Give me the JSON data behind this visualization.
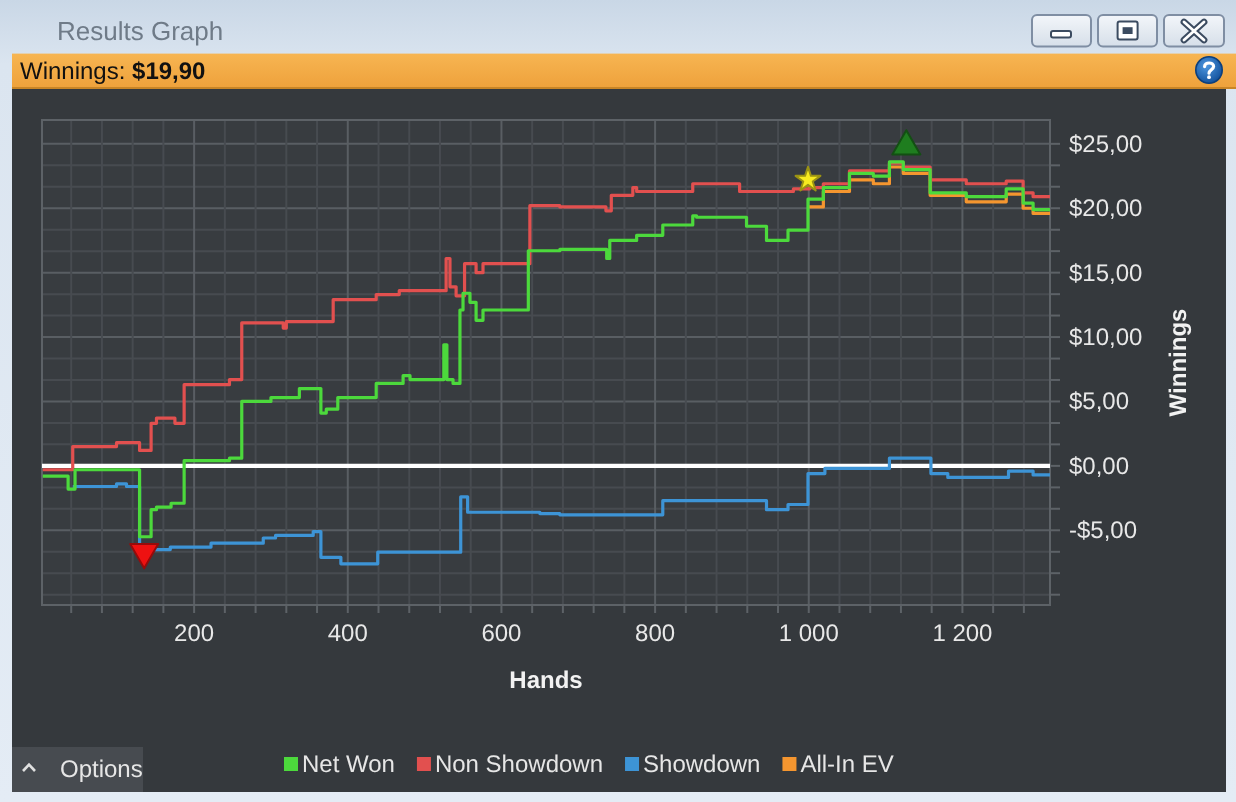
{
  "chart_data": {
    "type": "step",
    "title": "Results Graph",
    "subtitle": "Winnings: $19,90",
    "xlabel": "Hands",
    "ylabel": "Winnings",
    "annotations": [
      "Options"
    ],
    "xlim": [
      2,
      1314
    ],
    "ylim": [
      -10.8,
      26.85
    ],
    "xticks": [
      {
        "value": 40,
        "label": null
      },
      {
        "value": 80,
        "label": null
      },
      {
        "value": 120,
        "label": null
      },
      {
        "value": 160,
        "label": null
      },
      200,
      {
        "value": 240,
        "label": null
      },
      {
        "value": 280,
        "label": null
      },
      {
        "value": 320,
        "label": null
      },
      {
        "value": 360,
        "label": null
      },
      400,
      {
        "value": 440,
        "label": null
      },
      {
        "value": 480,
        "label": null
      },
      {
        "value": 520,
        "label": null
      },
      {
        "value": 560,
        "label": null
      },
      600,
      {
        "value": 640,
        "label": null
      },
      {
        "value": 680,
        "label": null
      },
      {
        "value": 720,
        "label": null
      },
      {
        "value": 760,
        "label": null
      },
      800,
      {
        "value": 840,
        "label": null
      },
      {
        "value": 880,
        "label": null
      },
      {
        "value": 920,
        "label": null
      },
      {
        "value": 960,
        "label": null
      },
      {
        "value": 1000,
        "label": "1 000"
      },
      {
        "value": 1040,
        "label": null
      },
      {
        "value": 1080,
        "label": null
      },
      {
        "value": 1120,
        "label": null
      },
      {
        "value": 1160,
        "label": null
      },
      {
        "value": 1200,
        "label": "1 200"
      },
      {
        "value": 1240,
        "label": null
      },
      {
        "value": 1280,
        "label": null
      }
    ],
    "yticks": [
      {
        "value": -10,
        "label": null
      },
      {
        "value": -8.33,
        "label": null
      },
      {
        "value": -6.67,
        "label": null
      },
      {
        "value": -5,
        "label": "-$5,00"
      },
      {
        "value": -3.33,
        "label": null
      },
      {
        "value": -1.67,
        "label": null
      },
      {
        "value": 0,
        "label": "$0,00"
      },
      {
        "value": 1.67,
        "label": null
      },
      {
        "value": 3.33,
        "label": null
      },
      {
        "value": 5,
        "label": "$5,00"
      },
      {
        "value": 6.67,
        "label": null
      },
      {
        "value": 8.33,
        "label": null
      },
      {
        "value": 10,
        "label": "$10,00"
      },
      {
        "value": 11.67,
        "label": null
      },
      {
        "value": 13.33,
        "label": null
      },
      {
        "value": 15,
        "label": "$15,00"
      },
      {
        "value": 16.67,
        "label": null
      },
      {
        "value": 18.33,
        "label": null
      },
      {
        "value": 20,
        "label": "$20,00"
      },
      {
        "value": 21.67,
        "label": null
      },
      {
        "value": 23.33,
        "label": null
      },
      {
        "value": 25,
        "label": "$25,00"
      }
    ],
    "grid": true,
    "legend": "bottom",
    "ref_lines": [
      {
        "axis": "y",
        "value": 0,
        "color": "#ffffff"
      }
    ],
    "series": [
      {
        "name": "Net Won",
        "color": "#4cd93c",
        "x": [
          3,
          36,
          45,
          129,
          144,
          151,
          170,
          187,
          246,
          262,
          300,
          337,
          365,
          372,
          387,
          437,
          472,
          481,
          525,
          529,
          537,
          546,
          550,
          559,
          567,
          576,
          635,
          676,
          737,
          741,
          776,
          810,
          849,
          854,
          919,
          945,
          973,
          999,
          1019,
          1053,
          1084,
          1105,
          1123,
          1158,
          1205,
          1257,
          1279,
          1292,
          1314
        ],
        "values": [
          -0.8,
          -1.8,
          -0.3,
          -5.5,
          -3.4,
          -3.2,
          -2.9,
          0.4,
          0.6,
          5.0,
          5.3,
          6.0,
          4.1,
          4.4,
          5.3,
          6.4,
          7.0,
          6.7,
          9.4,
          6.7,
          6.4,
          12.1,
          13.4,
          12.7,
          11.3,
          12.1,
          16.7,
          16.8,
          16.1,
          17.5,
          17.9,
          18.7,
          19.4,
          19.3,
          18.6,
          17.5,
          18.3,
          20.7,
          21.6,
          22.7,
          22.5,
          23.6,
          23.0,
          21.2,
          20.9,
          21.5,
          20.4,
          19.9,
          19.9
        ]
      },
      {
        "name": "Non Showdown",
        "color": "#e2504f",
        "x": [
          3,
          42,
          99,
          129,
          144,
          151,
          175,
          187,
          246,
          262,
          316,
          320,
          381,
          437,
          467,
          528,
          533,
          541,
          552,
          567,
          576,
          637,
          676,
          736,
          743,
          771,
          776,
          849,
          910,
          980,
          1001,
          1019,
          1053,
          1105,
          1123,
          1158,
          1205,
          1257,
          1279,
          1292,
          1314
        ],
        "values": [
          -0.3,
          1.5,
          1.8,
          1.2,
          3.3,
          3.7,
          3.3,
          6.3,
          6.7,
          11.1,
          10.7,
          11.2,
          12.9,
          13.3,
          13.6,
          16.1,
          13.9,
          13.2,
          15.7,
          15.0,
          15.7,
          20.2,
          20.1,
          19.8,
          21.0,
          21.6,
          21.3,
          21.9,
          21.3,
          21.5,
          21.6,
          21.9,
          22.9,
          23.5,
          23.2,
          22.2,
          21.9,
          22.1,
          21.2,
          20.9,
          20.9
        ]
      },
      {
        "name": "Showdown",
        "color": "#3d94d6",
        "x": [
          42,
          99,
          112,
          129,
          169,
          222,
          290,
          306,
          355,
          365,
          391,
          439,
          547,
          556,
          650,
          676,
          810,
          945,
          973,
          999,
          1021,
          1105,
          1159,
          1181,
          1260,
          1292,
          1314
        ],
        "values": [
          -1.6,
          -1.4,
          -1.6,
          -6.5,
          -6.3,
          -6.0,
          -5.6,
          -5.4,
          -5.1,
          -7.1,
          -7.6,
          -6.7,
          -2.4,
          -3.6,
          -3.7,
          -3.8,
          -2.7,
          -3.4,
          -3.0,
          -0.6,
          -0.2,
          0.6,
          -0.6,
          -0.9,
          -0.4,
          -0.7,
          -0.7
        ]
      },
      {
        "name": "All-In EV",
        "color": "#f5962f",
        "x": [
          999,
          1019,
          1053,
          1084,
          1105,
          1123,
          1158,
          1205,
          1257,
          1279,
          1292,
          1314
        ],
        "values": [
          20.1,
          21.3,
          22.2,
          21.9,
          23.2,
          22.7,
          21.0,
          20.5,
          21.1,
          20.0,
          19.6,
          19.6
        ]
      },
      {
        "type": "scatter",
        "marker": "triangle-down",
        "color": "#ee1111",
        "x": [
          135
        ],
        "values": [
          -6.7
        ]
      },
      {
        "type": "scatter",
        "marker": "star",
        "color": "#f7ea1f",
        "x": [
          999
        ],
        "values": [
          22.2
        ]
      },
      {
        "type": "scatter",
        "marker": "triangle",
        "color": "#1f7d1f",
        "x": [
          1127
        ],
        "values": [
          24.8
        ]
      }
    ]
  }
}
